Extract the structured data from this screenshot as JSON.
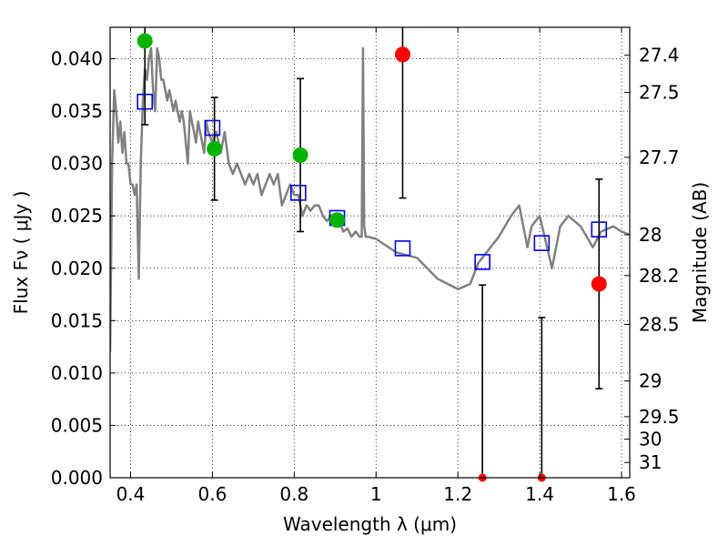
{
  "chart_data": {
    "type": "scatter",
    "xlabel": "Wavelength  λ (μm)",
    "ylabel": "Flux  Fν  ( μJy )",
    "y2label": "Magnitude (AB)",
    "xlim": [
      0.35,
      1.62
    ],
    "ylim": [
      0.0,
      0.043
    ],
    "grid": true,
    "x_ticks": [
      0.4,
      0.6,
      0.8,
      1.0,
      1.2,
      1.4,
      1.6
    ],
    "x_tick_labels": [
      "0.4",
      "0.6",
      "0.8",
      "1",
      "1.2",
      "1.4",
      "1.6"
    ],
    "y_ticks": [
      0.0,
      0.005,
      0.01,
      0.015,
      0.02,
      0.025,
      0.03,
      0.035,
      0.04
    ],
    "y_tick_labels": [
      "0.000",
      "0.005",
      "0.010",
      "0.015",
      "0.020",
      "0.025",
      "0.030",
      "0.035",
      "0.040"
    ],
    "y2_ticks": [
      {
        "label": "27.4",
        "flux": 0.04033
      },
      {
        "label": "27.5",
        "flux": 0.03678
      },
      {
        "label": "27.7",
        "flux": 0.03059
      },
      {
        "label": "28",
        "flux": 0.0232
      },
      {
        "label": "28.2",
        "flux": 0.0193
      },
      {
        "label": "28.5",
        "flux": 0.01464
      },
      {
        "label": "29",
        "flux": 0.00924
      },
      {
        "label": "29.5",
        "flux": 0.00583
      },
      {
        "label": "30",
        "flux": 0.00368
      },
      {
        "label": "31",
        "flux": 0.00146
      }
    ],
    "series": [
      {
        "kind": "line",
        "color": "#808080",
        "x": [
          0.35,
          0.355,
          0.36,
          0.365,
          0.37,
          0.375,
          0.38,
          0.385,
          0.39,
          0.395,
          0.4,
          0.405,
          0.41,
          0.415,
          0.42,
          0.425,
          0.43,
          0.435,
          0.44,
          0.445,
          0.45,
          0.455,
          0.46,
          0.465,
          0.47,
          0.475,
          0.48,
          0.485,
          0.49,
          0.495,
          0.5,
          0.505,
          0.51,
          0.515,
          0.52,
          0.525,
          0.53,
          0.535,
          0.54,
          0.545,
          0.55,
          0.555,
          0.56,
          0.565,
          0.57,
          0.575,
          0.58,
          0.585,
          0.59,
          0.6,
          0.61,
          0.62,
          0.63,
          0.64,
          0.65,
          0.66,
          0.67,
          0.68,
          0.69,
          0.7,
          0.71,
          0.72,
          0.73,
          0.74,
          0.75,
          0.76,
          0.77,
          0.78,
          0.79,
          0.8,
          0.81,
          0.82,
          0.83,
          0.84,
          0.85,
          0.86,
          0.87,
          0.88,
          0.89,
          0.9,
          0.91,
          0.92,
          0.93,
          0.94,
          0.95,
          0.96,
          0.965,
          0.968,
          0.971,
          0.975,
          0.98,
          1.0,
          1.05,
          1.1,
          1.15,
          1.2,
          1.23,
          1.25,
          1.27,
          1.3,
          1.33,
          1.35,
          1.37,
          1.38,
          1.4,
          1.43,
          1.45,
          1.47,
          1.5,
          1.53,
          1.55,
          1.58,
          1.6,
          1.62
        ],
        "y": [
          0.012,
          0.03,
          0.037,
          0.035,
          0.032,
          0.034,
          0.031,
          0.033,
          0.03,
          0.03,
          0.028,
          0.028,
          0.027,
          0.028,
          0.019,
          0.03,
          0.036,
          0.039,
          0.038,
          0.04,
          0.041,
          0.037,
          0.035,
          0.041,
          0.04,
          0.038,
          0.038,
          0.037,
          0.036,
          0.037,
          0.036,
          0.035,
          0.036,
          0.035,
          0.034,
          0.035,
          0.034,
          0.032,
          0.03,
          0.035,
          0.034,
          0.033,
          0.032,
          0.034,
          0.033,
          0.032,
          0.031,
          0.034,
          0.033,
          0.032,
          0.033,
          0.031,
          0.033,
          0.03,
          0.029,
          0.03,
          0.029,
          0.028,
          0.029,
          0.028,
          0.029,
          0.027,
          0.028,
          0.029,
          0.028,
          0.029,
          0.026,
          0.027,
          0.028,
          0.027,
          0.027,
          0.025,
          0.026,
          0.0255,
          0.026,
          0.026,
          0.025,
          0.0245,
          0.025,
          0.024,
          0.0245,
          0.0235,
          0.0238,
          0.023,
          0.0235,
          0.023,
          0.023,
          0.041,
          0.024,
          0.023,
          0.023,
          0.0228,
          0.0215,
          0.021,
          0.019,
          0.018,
          0.0185,
          0.0205,
          0.0215,
          0.023,
          0.025,
          0.026,
          0.022,
          0.024,
          0.025,
          0.02,
          0.024,
          0.025,
          0.024,
          0.022,
          0.0235,
          0.024,
          0.0235,
          0.0232
        ]
      },
      {
        "kind": "open-square",
        "color": "#0000ff",
        "x": [
          0.435,
          0.6,
          0.81,
          0.905,
          1.065,
          1.26,
          1.405,
          1.545
        ],
        "y": [
          0.0359,
          0.0334,
          0.0272,
          0.0248,
          0.0219,
          0.0206,
          0.0224,
          0.0237
        ]
      },
      {
        "kind": "errorbar-point",
        "x": [
          0.435,
          0.605,
          0.815,
          0.905,
          1.065,
          1.26,
          1.405,
          1.545
        ],
        "y": [
          0.0417,
          0.0314,
          0.0308,
          0.0246,
          0.0404,
          0.0,
          0.0,
          0.0185
        ],
        "yerr": [
          0.008,
          0.0049,
          0.0073,
          0.0004,
          0.0137,
          0.0184,
          0.0153,
          0.01
        ],
        "colors": [
          "#00b400",
          "#00b400",
          "#00b400",
          "#00b400",
          "#ff0000",
          "#ff0000",
          "#ff0000",
          "#ff0000"
        ]
      }
    ]
  }
}
